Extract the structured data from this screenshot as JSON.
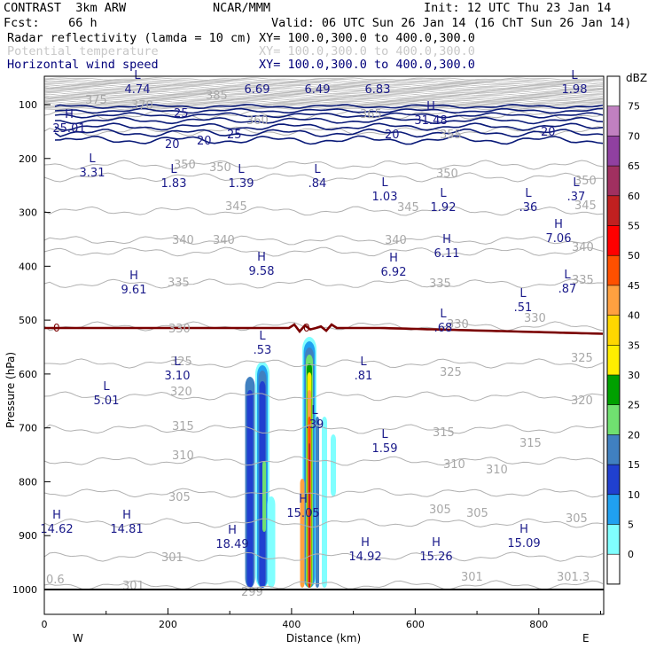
{
  "header": {
    "model": "CONTRAST  3km ARW",
    "org": "NCAR/MMM",
    "init": "Init: 12 UTC Thu 23 Jan 14",
    "fcst": "Fcst:    66 h",
    "valid": "Valid: 06 UTC Sun 26 Jan 14 (16 ChT Sun 26 Jan 14)",
    "field1": "Radar reflectivity (lamda = 10 cm)",
    "xy1": "XY= 100.0,300.0 to 400.0,300.0",
    "field2": "Potential temperature",
    "xy2": "XY= 100.0,300.0 to 400.0,300.0",
    "field3": "Horizontal wind speed",
    "xy3": "XY= 100.0,300.0 to 400.0,300.0"
  },
  "chart_data": {
    "type": "cross-section",
    "xlabel": "Distance (km)",
    "ylabel": "Pressure (hPa)",
    "xlim": [
      0,
      905
    ],
    "ylim": [
      1045,
      40
    ],
    "x_ticks": [
      "0",
      "200",
      "400",
      "600",
      "800"
    ],
    "y_ticks": [
      "100",
      "200",
      "300",
      "400",
      "500",
      "600",
      "700",
      "800",
      "900",
      "1000"
    ],
    "direction_left": "W",
    "direction_right": "E",
    "colorbar": {
      "unit": "dBZ",
      "levels": [
        "75",
        "70",
        "65",
        "60",
        "55",
        "50",
        "45",
        "40",
        "35",
        "30",
        "25",
        "20",
        "15",
        "10",
        "5",
        "0"
      ],
      "colors": [
        "#ffffff",
        "#c080c0",
        "#9040a0",
        "#a03060",
        "#c02020",
        "#ff0000",
        "#ff5000",
        "#ffa040",
        "#ffd700",
        "#ffee00",
        "#00a000",
        "#70e070",
        "#4080c0",
        "#2040d0",
        "#20a0f0",
        "#80ffff",
        "#ffffff"
      ]
    },
    "theta_isentropes_K": [
      "375",
      "370",
      "385",
      "360",
      "365",
      "355",
      "350",
      "345",
      "340",
      "335",
      "330",
      "325",
      "320",
      "315",
      "310",
      "305",
      "301",
      "301.3",
      "0.6"
    ],
    "wind_contours_ms": [
      "25",
      "20",
      "20",
      "25",
      "20",
      "20"
    ],
    "zero_contour_label": "0",
    "wind_extrema": [
      {
        "kind": "L",
        "value": "4.74"
      },
      {
        "kind": "",
        "value": "6.69"
      },
      {
        "kind": "",
        "value": "6.49"
      },
      {
        "kind": "",
        "value": "6.83"
      },
      {
        "kind": "L",
        "value": "1.98"
      },
      {
        "kind": "H",
        "value": "25.01"
      },
      {
        "kind": "H",
        "value": "31.48"
      },
      {
        "kind": "L",
        "value": "3.31"
      },
      {
        "kind": "L",
        "value": "1.83"
      },
      {
        "kind": "L",
        "value": "1.39"
      },
      {
        "kind": "L",
        "value": ".84"
      },
      {
        "kind": "L",
        "value": "1.03"
      },
      {
        "kind": "L",
        "value": "1.92"
      },
      {
        "kind": "L",
        "value": ".36"
      },
      {
        "kind": "L",
        "value": ".37"
      },
      {
        "kind": "H",
        "value": "7.06"
      },
      {
        "kind": "H",
        "value": "6.11"
      },
      {
        "kind": "H",
        "value": "9.58"
      },
      {
        "kind": "H",
        "value": "6.92"
      },
      {
        "kind": "H",
        "value": "9.61"
      },
      {
        "kind": "L",
        "value": ".87"
      },
      {
        "kind": "L",
        "value": ".51"
      },
      {
        "kind": "L",
        "value": ".68"
      },
      {
        "kind": "L",
        "value": ".53"
      },
      {
        "kind": "L",
        "value": "3.10"
      },
      {
        "kind": "L",
        "value": ".81"
      },
      {
        "kind": "L",
        "value": "5.01"
      },
      {
        "kind": "L",
        "value": ".39"
      },
      {
        "kind": "L",
        "value": "1.59"
      },
      {
        "kind": "H",
        "value": "15.05"
      },
      {
        "kind": "H",
        "value": "14.62"
      },
      {
        "kind": "H",
        "value": "14.81"
      },
      {
        "kind": "H",
        "value": "18.49"
      },
      {
        "kind": "H",
        "value": "14.92"
      },
      {
        "kind": "H",
        "value": "15.26"
      },
      {
        "kind": "H",
        "value": "15.09"
      }
    ],
    "surface_label": "299"
  }
}
